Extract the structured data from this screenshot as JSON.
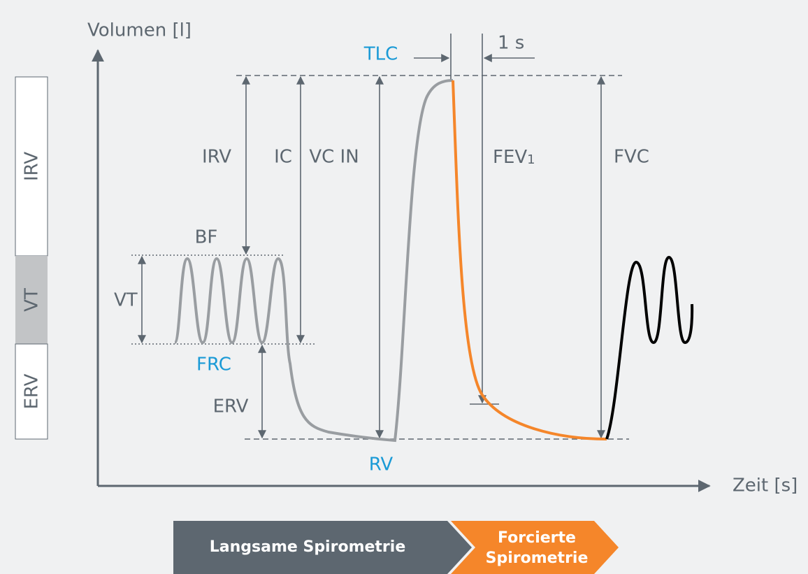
{
  "axes": {
    "y_label": "Volumen [l]",
    "x_label": "Zeit [s]"
  },
  "sidebar": [
    "IRV",
    "VT",
    "ERV"
  ],
  "levels": {
    "tlc": "TLC",
    "bf": "BF",
    "frc": "FRC",
    "rv": "RV"
  },
  "measures": {
    "irv": "IRV",
    "ic": "IC",
    "vc_in": "VC IN",
    "fev": "FEV",
    "fev_sub": "1",
    "fvc": "FVC",
    "vt": "VT",
    "erv": "ERV",
    "interval": "1 s"
  },
  "phases": {
    "slow": "Langsame Spirometrie",
    "forced": [
      "Forcierte",
      "Spirometrie"
    ]
  }
}
